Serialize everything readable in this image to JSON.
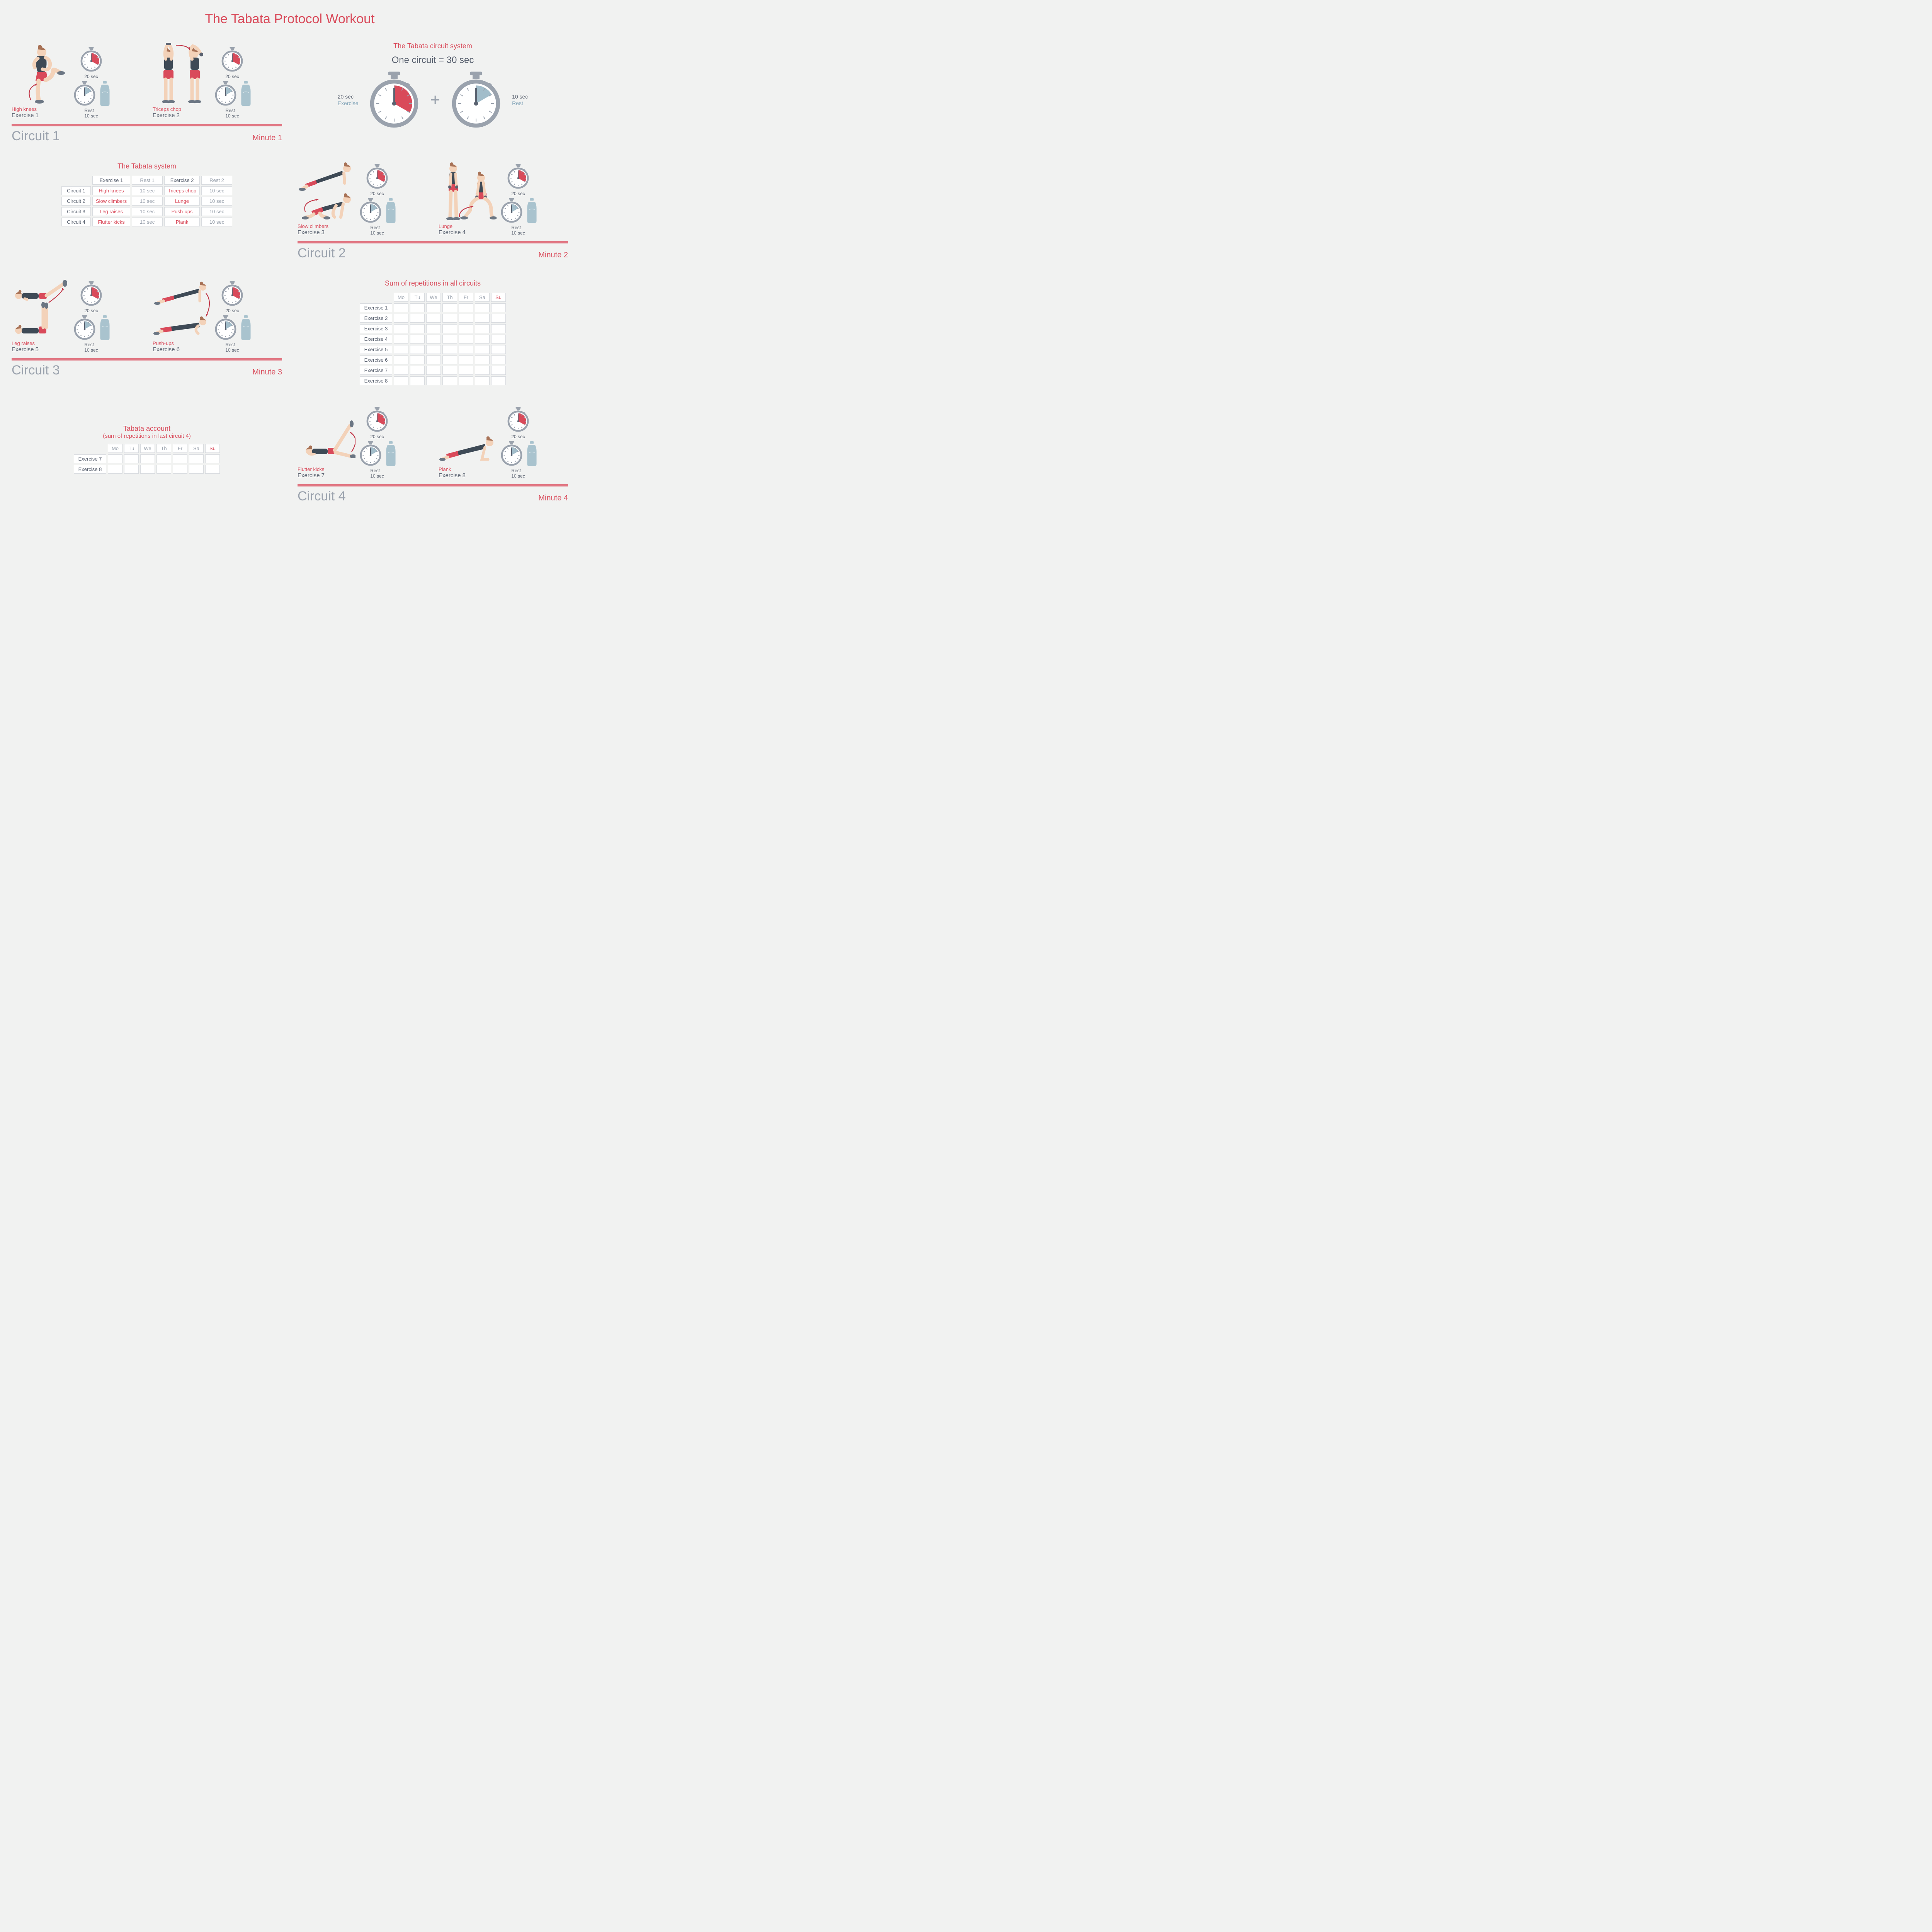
{
  "colors": {
    "red": "#d94a5a",
    "red_dark": "#c2394a",
    "gray": "#9aa2ad",
    "dark_gray": "#5a6270",
    "blue": "#88a8bb",
    "blue_fill": "#a2bdca",
    "bg": "#f1f2f1",
    "bar": "#e17884",
    "skin": "#f3d2b9",
    "hair": "#a87256",
    "top": "#3e4a56",
    "shorts": "#d94a5a",
    "shoe": "#6b7683",
    "bottle": "#a9c3ce",
    "cell_border": "#d8dbdf"
  },
  "title": "The Tabata Protocol Workout",
  "timer": {
    "work_label": "20 sec",
    "rest_label_top": "Rest",
    "rest_label_bot": "10 sec",
    "work_deg": 120,
    "rest_deg": 60
  },
  "system": {
    "heading": "The Tabata circuit system",
    "equation": "One circuit = 30 sec",
    "work_val": "20 sec",
    "work_word": "Exercise",
    "rest_val": "10 sec",
    "rest_word": "Rest"
  },
  "circuits": [
    {
      "label": "Circuit 1",
      "minute": "Minute 1",
      "ex": [
        {
          "name": "High knees",
          "num": "Exercise 1",
          "pose": "highknees"
        },
        {
          "name": "Triceps chop",
          "num": "Exercise 2",
          "pose": "triceps"
        }
      ]
    },
    {
      "label": "Circuit 2",
      "minute": "Minute 2",
      "ex": [
        {
          "name": "Slow climbers",
          "num": "Exercise 3",
          "pose": "climbers"
        },
        {
          "name": "Lunge",
          "num": "Exercise 4",
          "pose": "lunge"
        }
      ]
    },
    {
      "label": "Circuit 3",
      "minute": "Minute 3",
      "ex": [
        {
          "name": "Leg raises",
          "num": "Exercise 5",
          "pose": "legraises"
        },
        {
          "name": "Push-ups",
          "num": "Exercise 6",
          "pose": "pushups"
        }
      ]
    },
    {
      "label": "Circuit 4",
      "minute": "Minute 4",
      "ex": [
        {
          "name": "Flutter kicks",
          "num": "Exercise 7",
          "pose": "flutter"
        },
        {
          "name": "Plank",
          "num": "Exercise 8",
          "pose": "plank"
        }
      ]
    }
  ],
  "tabata_table": {
    "title": "The Tabata  system",
    "headers_top": [
      "",
      "Exercise 1",
      "Rest 1",
      "Exercise 2",
      "Rest 2"
    ],
    "rows": [
      [
        "Circuit 1",
        "High knees",
        "10 sec",
        "Triceps chop",
        "10 sec"
      ],
      [
        "Circuit 2",
        "Slow climbers",
        "10 sec",
        "Lunge",
        "10 sec"
      ],
      [
        "Circuit 3",
        "Leg raises",
        "10 sec",
        "Push-ups",
        "10 sec"
      ],
      [
        "Circuit 4",
        "Flutter kicks",
        "10 sec",
        "Plank",
        "10 sec"
      ]
    ]
  },
  "reps_table": {
    "title": "Sum of repetitions in all circuits",
    "days": [
      "Mo",
      "Tu",
      "We",
      "Th",
      "Fr",
      "Sa",
      "Su"
    ],
    "rows": [
      "Exercise 1",
      "Exercise 2",
      "Exercise 3",
      "Exercise 4",
      "Exercise 5",
      "Exercise 6",
      "Exercise 7",
      "Exercise 8"
    ]
  },
  "account_table": {
    "title": "Tabata account",
    "subtitle": "(sum of repetitions in last circuit 4)",
    "days": [
      "Mo",
      "Tu",
      "We",
      "Th",
      "Fr",
      "Sa",
      "Su"
    ],
    "rows": [
      "Exercise 7",
      "Exercise 8"
    ]
  }
}
